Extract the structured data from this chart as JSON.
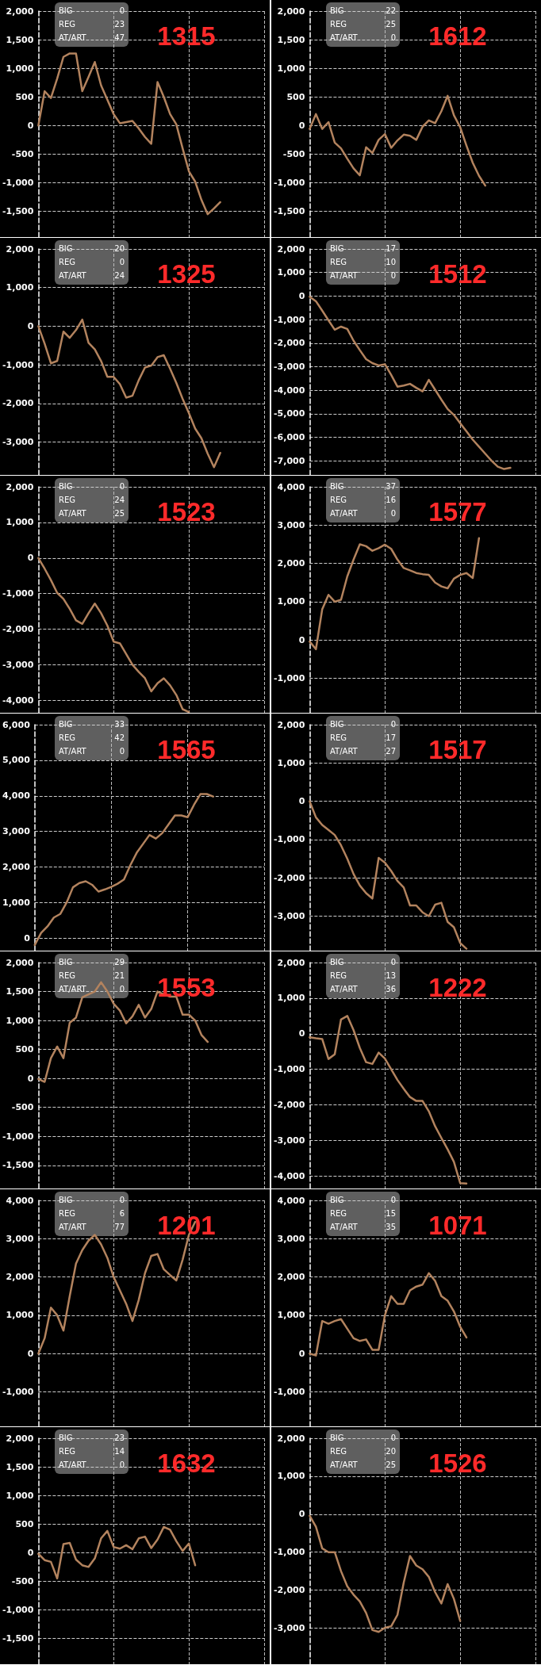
{
  "chart_data": [
    {
      "type": "line",
      "title": "1315",
      "annotations": [
        "BIG",
        "0",
        "REG",
        "23",
        "AT/ART",
        "47"
      ],
      "tick_labels": "y",
      "grid": true,
      "color": "#b3835e",
      "ylim": [
        -1950,
        2000
      ],
      "yticks": [
        {
          "value": 2000,
          "label": "2,000"
        },
        {
          "value": 1500,
          "label": "1,500"
        },
        {
          "value": 1000,
          "label": "1,000"
        },
        500,
        0,
        -500,
        {
          "value": -1000,
          "label": "-1,000"
        },
        {
          "value": -1500,
          "label": "-1,500"
        }
      ],
      "categories": [
        null,
        null,
        null,
        null,
        null,
        null,
        null,
        null,
        null,
        null,
        null,
        null,
        null,
        null,
        null,
        null,
        null,
        null,
        null,
        null,
        null,
        null,
        null,
        null,
        null,
        null,
        null,
        null,
        null,
        null,
        null,
        null,
        null,
        null,
        null,
        null,
        null
      ],
      "values": [
        0,
        600,
        480,
        820,
        1200,
        1260,
        1260,
        600,
        850,
        1110,
        700,
        450,
        200,
        40,
        60,
        80,
        -50,
        -200,
        -320,
        760,
        500,
        200,
        20,
        -400,
        -800,
        -980,
        -1300,
        -1550,
        -1450,
        -1340,
        null,
        null,
        null,
        null,
        null,
        null,
        null
      ]
    },
    {
      "type": "line",
      "title": "1612",
      "annotations": [
        "BIG",
        "22",
        "REG",
        "25",
        "AT/ART",
        "0"
      ],
      "tick_labels": "y",
      "grid": true,
      "color": "#b3835e",
      "ylim": [
        -1950,
        2000
      ],
      "yticks": [
        {
          "value": 2000,
          "label": "2,000"
        },
        {
          "value": 1500,
          "label": "1,500"
        },
        {
          "value": 1000,
          "label": "1,000"
        },
        500,
        0,
        -500,
        {
          "value": -1000,
          "label": "-1,000"
        },
        {
          "value": -1500,
          "label": "-1,500"
        }
      ],
      "categories": [
        null,
        null,
        null,
        null,
        null,
        null,
        null,
        null,
        null,
        null,
        null,
        null,
        null,
        null,
        null,
        null,
        null,
        null,
        null,
        null,
        null,
        null,
        null,
        null,
        null,
        null,
        null,
        null,
        null,
        null,
        null,
        null,
        null,
        null,
        null,
        null,
        null
      ],
      "values": [
        -60,
        200,
        -60,
        60,
        -300,
        -400,
        -580,
        -750,
        -870,
        -380,
        -480,
        -250,
        -150,
        -390,
        -260,
        -160,
        -180,
        -250,
        -20,
        90,
        40,
        250,
        520,
        180,
        -30,
        -350,
        -650,
        -880,
        -1050,
        null,
        null,
        null,
        null,
        null,
        null,
        null,
        null
      ]
    },
    {
      "type": "line",
      "title": "1325",
      "annotations": [
        "BIG",
        "20",
        "REG",
        "0",
        "AT/ART",
        "24"
      ],
      "tick_labels": "y",
      "grid": true,
      "color": "#b3835e",
      "ylim": [
        -3850,
        2000
      ],
      "yticks": [
        {
          "value": 2000,
          "label": "2,000"
        },
        {
          "value": 1000,
          "label": "1,000"
        },
        0,
        {
          "value": -1000,
          "label": "-1,000"
        },
        {
          "value": -2000,
          "label": "-2,000"
        },
        {
          "value": -3000,
          "label": "-3,000"
        }
      ],
      "categories": [
        null,
        null,
        null,
        null,
        null,
        null,
        null,
        null,
        null,
        null,
        null,
        null,
        null,
        null,
        null,
        null,
        null,
        null,
        null,
        null,
        null,
        null,
        null,
        null,
        null,
        null,
        null,
        null,
        null,
        null,
        null,
        null,
        null,
        null,
        null,
        null,
        null
      ],
      "values": [
        0,
        -450,
        -960,
        -900,
        -140,
        -300,
        -100,
        170,
        -430,
        -600,
        -900,
        -1310,
        -1310,
        -1500,
        -1850,
        -1800,
        -1400,
        -1070,
        -1020,
        -800,
        -750,
        -1100,
        -1470,
        -1880,
        -2250,
        -2650,
        -2900,
        -3300,
        -3650,
        -3280,
        null,
        null,
        null,
        null,
        null,
        null,
        null
      ]
    },
    {
      "type": "line",
      "title": "1512",
      "annotations": [
        "BIG",
        "17",
        "REG",
        "10",
        "AT/ART",
        "0"
      ],
      "tick_labels": "y",
      "grid": true,
      "color": "#b3835e",
      "ylim": [
        -7600,
        2000
      ],
      "yticks": [
        {
          "value": 2000,
          "label": "2,000"
        },
        {
          "value": 1000,
          "label": "1,000"
        },
        0,
        {
          "value": -1000,
          "label": "-1,000"
        },
        {
          "value": -2000,
          "label": "-2,000"
        },
        {
          "value": -3000,
          "label": "-3,000"
        },
        {
          "value": -4000,
          "label": "-4,000"
        },
        {
          "value": -5000,
          "label": "-5,000"
        },
        {
          "value": -6000,
          "label": "-6,000"
        },
        {
          "value": -7000,
          "label": "-7,000"
        }
      ],
      "categories": [
        null,
        null,
        null,
        null,
        null,
        null,
        null,
        null,
        null,
        null,
        null,
        null,
        null,
        null,
        null,
        null,
        null,
        null,
        null,
        null,
        null,
        null,
        null,
        null,
        null,
        null,
        null,
        null,
        null,
        null,
        null,
        null,
        null,
        null,
        null,
        null,
        null
      ],
      "values": [
        -30,
        -220,
        -620,
        -1030,
        -1430,
        -1300,
        -1400,
        -1900,
        -2300,
        -2680,
        -2850,
        -2950,
        -2900,
        -3350,
        -3850,
        -3800,
        -3730,
        -3900,
        -4050,
        -3560,
        -3980,
        -4400,
        -4800,
        -5050,
        -5400,
        -5750,
        -6100,
        -6400,
        -6700,
        -7000,
        -7250,
        -7350,
        -7300,
        null,
        null,
        null,
        null
      ]
    },
    {
      "type": "line",
      "title": "1523",
      "annotations": [
        "BIG",
        "0",
        "REG",
        "24",
        "AT/ART",
        "25"
      ],
      "tick_labels": "y",
      "grid": true,
      "color": "#b3835e",
      "ylim": [
        -4350,
        2000
      ],
      "yticks": [
        {
          "value": 2000,
          "label": "2,000"
        },
        {
          "value": 1000,
          "label": "1,000"
        },
        0,
        {
          "value": -1000,
          "label": "-1,000"
        },
        {
          "value": -2000,
          "label": "-2,000"
        },
        {
          "value": -3000,
          "label": "-3,000"
        },
        {
          "value": -4000,
          "label": "-4,000"
        }
      ],
      "categories": [
        null,
        null,
        null,
        null,
        null,
        null,
        null,
        null,
        null,
        null,
        null,
        null,
        null,
        null,
        null,
        null,
        null,
        null,
        null,
        null,
        null,
        null,
        null,
        null,
        null,
        null,
        null,
        null,
        null,
        null,
        null,
        null,
        null,
        null,
        null,
        null,
        null
      ],
      "values": [
        0,
        -300,
        -620,
        -980,
        -1150,
        -1430,
        -1750,
        -1850,
        -1550,
        -1280,
        -1550,
        -1900,
        -2350,
        -2400,
        -2700,
        -3000,
        -3200,
        -3380,
        -3750,
        -3520,
        -3380,
        -3580,
        -3850,
        -4250,
        -4330,
        null,
        null,
        null,
        null,
        null,
        null,
        null,
        null,
        null,
        null,
        null,
        null
      ]
    },
    {
      "type": "line",
      "title": "1577",
      "annotations": [
        "BIG",
        "37",
        "REG",
        "16",
        "AT/ART",
        "0"
      ],
      "tick_labels": "y",
      "grid": true,
      "color": "#b3835e",
      "ylim": [
        -1900,
        4000
      ],
      "yticks": [
        {
          "value": 4000,
          "label": "4,000"
        },
        {
          "value": 3000,
          "label": "3,000"
        },
        {
          "value": 2000,
          "label": "2,000"
        },
        {
          "value": 1000,
          "label": "1,000"
        },
        0,
        {
          "value": -1000,
          "label": "-1,000"
        }
      ],
      "categories": [
        null,
        null,
        null,
        null,
        null,
        null,
        null,
        null,
        null,
        null,
        null,
        null,
        null,
        null,
        null,
        null,
        null,
        null,
        null,
        null,
        null,
        null,
        null,
        null,
        null,
        null,
        null,
        null,
        null,
        null,
        null,
        null,
        null,
        null,
        null,
        null,
        null
      ],
      "values": [
        -40,
        -240,
        800,
        1180,
        1000,
        1050,
        1660,
        2100,
        2500,
        2450,
        2330,
        2400,
        2490,
        2380,
        2100,
        1880,
        1820,
        1750,
        1720,
        1700,
        1500,
        1400,
        1350,
        1600,
        1700,
        1750,
        1620,
        2660,
        null,
        null,
        null,
        null,
        null,
        null,
        null,
        null,
        null
      ]
    },
    {
      "type": "line",
      "title": "1565",
      "annotations": [
        "BIG",
        "33",
        "REG",
        "42",
        "AT/ART",
        "0"
      ],
      "tick_labels": "y",
      "grid": true,
      "color": "#b3835e",
      "ylim": [
        -350,
        6000
      ],
      "yticks": [
        {
          "value": 6000,
          "label": "6,000"
        },
        {
          "value": 5000,
          "label": "5,000"
        },
        {
          "value": 4000,
          "label": "4,000"
        },
        {
          "value": 3000,
          "label": "3,000"
        },
        {
          "value": 2000,
          "label": "2,000"
        },
        {
          "value": 1000,
          "label": "1,000"
        },
        0
      ],
      "categories": [
        null,
        null,
        null,
        null,
        null,
        null,
        null,
        null,
        null,
        null,
        null,
        null,
        null,
        null,
        null,
        null,
        null,
        null,
        null,
        null,
        null,
        null,
        null,
        null,
        null,
        null,
        null,
        null,
        null,
        null,
        null,
        null,
        null,
        null,
        null,
        null,
        null
      ],
      "values": [
        -190,
        150,
        330,
        580,
        680,
        1000,
        1430,
        1550,
        1600,
        1500,
        1310,
        1370,
        1440,
        1530,
        1650,
        2050,
        2400,
        2650,
        2900,
        2800,
        2950,
        3200,
        3450,
        3450,
        3400,
        3750,
        4050,
        4050,
        3980,
        null,
        null,
        null,
        null,
        null,
        null,
        null,
        null
      ]
    },
    {
      "type": "line",
      "title": "1517",
      "annotations": [
        "BIG",
        "0",
        "REG",
        "17",
        "AT/ART",
        "27"
      ],
      "tick_labels": "y",
      "grid": true,
      "color": "#b3835e",
      "ylim": [
        -3900,
        2000
      ],
      "yticks": [
        {
          "value": 2000,
          "label": "2,000"
        },
        {
          "value": 1000,
          "label": "1,000"
        },
        0,
        {
          "value": -1000,
          "label": "-1,000"
        },
        {
          "value": -2000,
          "label": "-2,000"
        },
        {
          "value": -3000,
          "label": "-3,000"
        }
      ],
      "categories": [
        null,
        null,
        null,
        null,
        null,
        null,
        null,
        null,
        null,
        null,
        null,
        null,
        null,
        null,
        null,
        null,
        null,
        null,
        null,
        null,
        null,
        null,
        null,
        null,
        null,
        null,
        null,
        null,
        null,
        null,
        null,
        null,
        null,
        null,
        null,
        null,
        null
      ],
      "values": [
        0,
        -420,
        -620,
        -750,
        -880,
        -1150,
        -1500,
        -1900,
        -2200,
        -2400,
        -2540,
        -1480,
        -1600,
        -1820,
        -2080,
        -2250,
        -2720,
        -2720,
        -2900,
        -3000,
        -2700,
        -2650,
        -3150,
        -3290,
        -3700,
        -3850,
        null,
        null,
        null,
        null,
        null,
        null,
        null,
        null,
        null,
        null,
        null
      ]
    },
    {
      "type": "line",
      "title": "1553",
      "annotations": [
        "BIG",
        "29",
        "REG",
        "21",
        "AT/ART",
        "0"
      ],
      "tick_labels": "y",
      "grid": true,
      "color": "#b3835e",
      "ylim": [
        -1900,
        2000
      ],
      "yticks": [
        {
          "value": 2000,
          "label": "2,000"
        },
        {
          "value": 1500,
          "label": "1,500"
        },
        {
          "value": 1000,
          "label": "1,000"
        },
        500,
        0,
        -500,
        {
          "value": -1000,
          "label": "-1,000"
        },
        {
          "value": -1500,
          "label": "-1,500"
        }
      ],
      "categories": [
        null,
        null,
        null,
        null,
        null,
        null,
        null,
        null,
        null,
        null,
        null,
        null,
        null,
        null,
        null,
        null,
        null,
        null,
        null,
        null,
        null,
        null,
        null,
        null,
        null,
        null,
        null,
        null,
        null,
        null,
        null,
        null,
        null,
        null,
        null,
        null,
        null
      ],
      "values": [
        -10,
        -60,
        350,
        550,
        350,
        960,
        1050,
        1400,
        1450,
        1500,
        1660,
        1500,
        1290,
        1170,
        950,
        1070,
        1270,
        1050,
        1200,
        1500,
        1450,
        1410,
        1410,
        1100,
        1100,
        1000,
        750,
        630,
        null,
        null,
        null,
        null,
        null,
        null,
        null,
        null,
        null
      ]
    },
    {
      "type": "line",
      "title": "1222",
      "annotations": [
        "BIG",
        "0",
        "REG",
        "13",
        "AT/ART",
        "36"
      ],
      "tick_labels": "y",
      "grid": true,
      "color": "#b3835e",
      "ylim": [
        -4350,
        2000
      ],
      "yticks": [
        {
          "value": 2000,
          "label": "2,000"
        },
        {
          "value": 1000,
          "label": "1,000"
        },
        0,
        {
          "value": -1000,
          "label": "-1,000"
        },
        {
          "value": -2000,
          "label": "-2,000"
        },
        {
          "value": -3000,
          "label": "-3,000"
        },
        {
          "value": -4000,
          "label": "-4,000"
        }
      ],
      "categories": [
        null,
        null,
        null,
        null,
        null,
        null,
        null,
        null,
        null,
        null,
        null,
        null,
        null,
        null,
        null,
        null,
        null,
        null,
        null,
        null,
        null,
        null,
        null,
        null,
        null,
        null,
        null,
        null,
        null,
        null,
        null,
        null,
        null,
        null,
        null,
        null,
        null
      ],
      "values": [
        -100,
        -130,
        -150,
        -710,
        -580,
        400,
        500,
        100,
        -400,
        -800,
        -850,
        -530,
        -700,
        -1000,
        -1300,
        -1550,
        -1780,
        -1890,
        -1890,
        -2180,
        -2600,
        -2930,
        -3250,
        -3600,
        -4200,
        -4210,
        null,
        null,
        null,
        null,
        null,
        null,
        null,
        null,
        null,
        null,
        null
      ]
    },
    {
      "type": "line",
      "title": "1201",
      "annotations": [
        "BIG",
        "0",
        "REG",
        "6",
        "AT/ART",
        "77"
      ],
      "tick_labels": "y",
      "grid": true,
      "color": "#b3835e",
      "ylim": [
        -1900,
        4000
      ],
      "yticks": [
        {
          "value": 4000,
          "label": "4,000"
        },
        {
          "value": 3000,
          "label": "3,000"
        },
        {
          "value": 2000,
          "label": "2,000"
        },
        {
          "value": 1000,
          "label": "1,000"
        },
        0,
        {
          "value": -1000,
          "label": "-1,000"
        }
      ],
      "categories": [
        null,
        null,
        null,
        null,
        null,
        null,
        null,
        null,
        null,
        null,
        null,
        null,
        null,
        null,
        null,
        null,
        null,
        null,
        null,
        null,
        null,
        null,
        null,
        null,
        null,
        null,
        null,
        null,
        null,
        null,
        null,
        null,
        null,
        null,
        null,
        null,
        null
      ],
      "values": [
        0,
        400,
        1200,
        1000,
        600,
        1500,
        2350,
        2700,
        2950,
        3100,
        2850,
        2500,
        2000,
        1650,
        1300,
        850,
        1400,
        2100,
        2550,
        2600,
        2200,
        2050,
        1910,
        2450,
        3100,
        3440,
        null,
        null,
        null,
        null,
        null,
        null,
        null,
        null,
        null,
        null,
        null
      ]
    },
    {
      "type": "line",
      "title": "1071",
      "annotations": [
        "BIG",
        "0",
        "REG",
        "15",
        "AT/ART",
        "35"
      ],
      "tick_labels": "y",
      "grid": true,
      "color": "#b3835e",
      "ylim": [
        -1900,
        4000
      ],
      "yticks": [
        {
          "value": 4000,
          "label": "4,000"
        },
        {
          "value": 3000,
          "label": "3,000"
        },
        {
          "value": 2000,
          "label": "2,000"
        },
        {
          "value": 1000,
          "label": "1,000"
        },
        0,
        {
          "value": -1000,
          "label": "-1,000"
        }
      ],
      "categories": [
        null,
        null,
        null,
        null,
        null,
        null,
        null,
        null,
        null,
        null,
        null,
        null,
        null,
        null,
        null,
        null,
        null,
        null,
        null,
        null,
        null,
        null,
        null,
        null,
        null,
        null,
        null,
        null,
        null,
        null,
        null,
        null,
        null,
        null,
        null,
        null,
        null
      ],
      "values": [
        0,
        -50,
        850,
        780,
        850,
        900,
        650,
        400,
        330,
        370,
        100,
        100,
        1000,
        1500,
        1300,
        1300,
        1650,
        1750,
        1800,
        2100,
        1900,
        1500,
        1380,
        1100,
        700,
        420,
        null,
        null,
        null,
        null,
        null,
        null,
        null,
        null,
        null,
        null,
        null
      ]
    },
    {
      "type": "line",
      "title": "1632",
      "annotations": [
        "BIG",
        "23",
        "REG",
        "14",
        "AT/ART",
        "0"
      ],
      "tick_labels": "y",
      "grid": true,
      "color": "#b3835e",
      "ylim": [
        -1950,
        2000
      ],
      "yticks": [
        {
          "value": 2000,
          "label": "2,000"
        },
        {
          "value": 1500,
          "label": "1,500"
        },
        {
          "value": 1000,
          "label": "1,000"
        },
        500,
        0,
        -500,
        {
          "value": -1000,
          "label": "-1,000"
        },
        {
          "value": -1500,
          "label": "-1,500"
        }
      ],
      "categories": [
        null,
        null,
        null,
        null,
        null,
        null,
        null,
        null,
        null,
        null,
        null,
        null,
        null,
        null,
        null,
        null,
        null,
        null,
        null,
        null,
        null,
        null,
        null,
        null,
        null,
        null,
        null,
        null,
        null,
        null,
        null,
        null,
        null,
        null,
        null,
        null,
        null
      ],
      "values": [
        -20,
        -130,
        -160,
        -450,
        150,
        170,
        -120,
        -220,
        -250,
        -100,
        250,
        380,
        100,
        70,
        130,
        60,
        250,
        280,
        80,
        230,
        450,
        400,
        200,
        30,
        160,
        -220,
        null,
        null,
        null,
        null,
        null,
        null,
        null,
        null,
        null,
        null,
        null
      ]
    },
    {
      "type": "line",
      "title": "1526",
      "annotations": [
        "BIG",
        "0",
        "REG",
        "20",
        "AT/ART",
        "25"
      ],
      "tick_labels": "y",
      "grid": true,
      "color": "#b3835e",
      "ylim": [
        -3950,
        2000
      ],
      "yticks": [
        {
          "value": 2000,
          "label": "2,000"
        },
        {
          "value": 1000,
          "label": "1,000"
        },
        0,
        {
          "value": -1000,
          "label": "-1,000"
        },
        {
          "value": -2000,
          "label": "-2,000"
        },
        {
          "value": -3000,
          "label": "-3,000"
        }
      ],
      "categories": [
        null,
        null,
        null,
        null,
        null,
        null,
        null,
        null,
        null,
        null,
        null,
        null,
        null,
        null,
        null,
        null,
        null,
        null,
        null,
        null,
        null,
        null,
        null,
        null,
        null,
        null,
        null,
        null,
        null,
        null,
        null,
        null,
        null,
        null,
        null,
        null,
        null
      ],
      "values": [
        -40,
        -330,
        -900,
        -1000,
        -1000,
        -1500,
        -1900,
        -2120,
        -2300,
        -2600,
        -3050,
        -3100,
        -2990,
        -2950,
        -2650,
        -1800,
        -1100,
        -1350,
        -1450,
        -1650,
        -2050,
        -2350,
        -1840,
        -2230,
        -2810,
        null,
        null,
        null,
        null,
        null,
        null,
        null,
        null,
        null,
        null,
        null,
        null
      ]
    }
  ]
}
